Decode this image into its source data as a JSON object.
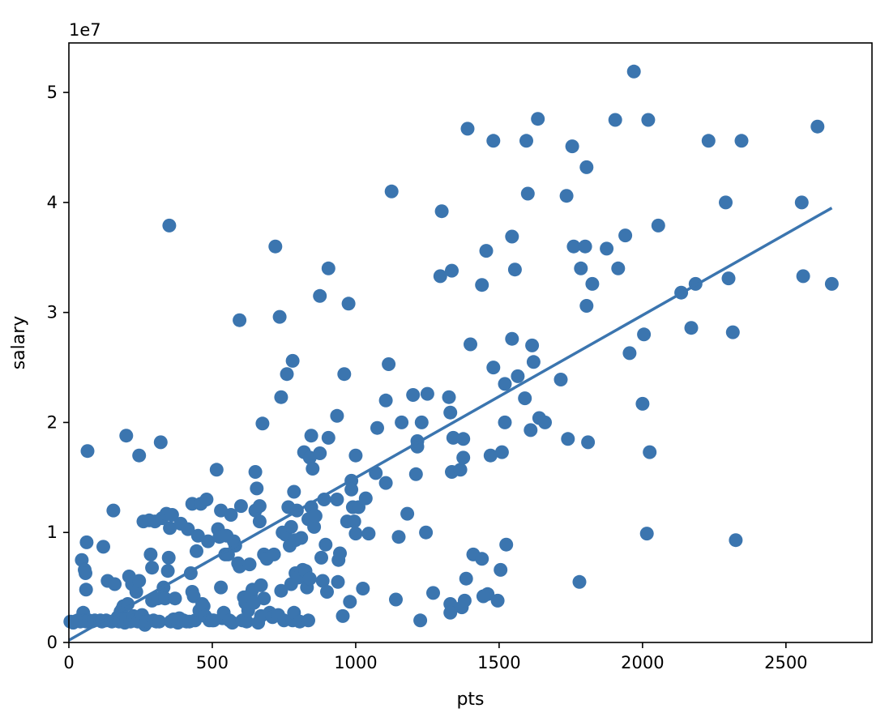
{
  "chart_data": {
    "type": "scatter",
    "title": "",
    "xlabel": "pts",
    "ylabel": "salary",
    "y_offset_label": "1e7",
    "xlim": [
      0,
      2800
    ],
    "ylim": [
      0,
      54500000
    ],
    "x_ticks": [
      0,
      500,
      1000,
      1500,
      2000,
      2500
    ],
    "x_tick_labels": [
      "0",
      "500",
      "1000",
      "1500",
      "2000",
      "2500"
    ],
    "y_ticks": [
      0,
      10000000,
      20000000,
      30000000,
      40000000,
      50000000
    ],
    "y_tick_labels": [
      "0",
      "1",
      "2",
      "3",
      "4",
      "5"
    ],
    "grid": false,
    "legend": "none",
    "colors": {
      "points": "#3b75af",
      "fit_line": "#3b75af"
    },
    "fit_line": {
      "x": [
        0,
        2660
      ],
      "y": [
        200000,
        39500000
      ]
    },
    "points": [
      [
        5,
        1900000
      ],
      [
        15,
        1800000
      ],
      [
        20,
        1900000
      ],
      [
        30,
        2000000
      ],
      [
        40,
        1900000
      ],
      [
        45,
        7500000
      ],
      [
        50,
        2700000
      ],
      [
        55,
        2000000
      ],
      [
        55,
        6600000
      ],
      [
        58,
        6300000
      ],
      [
        60,
        1900000
      ],
      [
        60,
        4800000
      ],
      [
        62,
        9100000
      ],
      [
        65,
        17400000
      ],
      [
        70,
        2000000
      ],
      [
        80,
        1900000
      ],
      [
        90,
        2000000
      ],
      [
        110,
        2000000
      ],
      [
        115,
        1900000
      ],
      [
        120,
        8700000
      ],
      [
        130,
        2000000
      ],
      [
        135,
        5600000
      ],
      [
        150,
        1900000
      ],
      [
        155,
        12000000
      ],
      [
        160,
        5300000
      ],
      [
        165,
        2000000
      ],
      [
        170,
        2300000
      ],
      [
        175,
        1900000
      ],
      [
        180,
        2800000
      ],
      [
        185,
        3000000
      ],
      [
        190,
        3300000
      ],
      [
        195,
        1800000
      ],
      [
        200,
        18800000
      ],
      [
        200,
        2100000
      ],
      [
        205,
        3500000
      ],
      [
        210,
        6000000
      ],
      [
        215,
        1900000
      ],
      [
        220,
        5300000
      ],
      [
        225,
        2400000
      ],
      [
        230,
        2000000
      ],
      [
        235,
        4600000
      ],
      [
        240,
        1900000
      ],
      [
        245,
        17000000
      ],
      [
        245,
        5600000
      ],
      [
        255,
        2500000
      ],
      [
        260,
        11000000
      ],
      [
        265,
        1600000
      ],
      [
        270,
        2000000
      ],
      [
        275,
        1900000
      ],
      [
        280,
        11100000
      ],
      [
        285,
        8000000
      ],
      [
        290,
        6800000
      ],
      [
        290,
        3800000
      ],
      [
        295,
        2000000
      ],
      [
        300,
        11000000
      ],
      [
        305,
        1900000
      ],
      [
        310,
        4000000
      ],
      [
        315,
        1900000
      ],
      [
        320,
        18200000
      ],
      [
        325,
        11300000
      ],
      [
        330,
        5000000
      ],
      [
        335,
        4000000
      ],
      [
        340,
        11700000
      ],
      [
        345,
        6500000
      ],
      [
        348,
        7700000
      ],
      [
        350,
        37900000
      ],
      [
        352,
        10400000
      ],
      [
        355,
        1900000
      ],
      [
        360,
        11600000
      ],
      [
        365,
        2100000
      ],
      [
        370,
        4000000
      ],
      [
        375,
        2000000
      ],
      [
        380,
        1800000
      ],
      [
        385,
        2200000
      ],
      [
        390,
        10800000
      ],
      [
        395,
        2000000
      ],
      [
        400,
        2000000
      ],
      [
        410,
        1900000
      ],
      [
        415,
        10300000
      ],
      [
        420,
        1900000
      ],
      [
        425,
        6300000
      ],
      [
        430,
        12600000
      ],
      [
        430,
        4600000
      ],
      [
        435,
        4200000
      ],
      [
        440,
        2000000
      ],
      [
        445,
        8300000
      ],
      [
        450,
        9700000
      ],
      [
        455,
        2900000
      ],
      [
        460,
        12600000
      ],
      [
        465,
        3500000
      ],
      [
        470,
        3300000
      ],
      [
        475,
        2400000
      ],
      [
        480,
        13000000
      ],
      [
        485,
        9200000
      ],
      [
        490,
        2000000
      ],
      [
        500,
        2000000
      ],
      [
        505,
        2000000
      ],
      [
        515,
        15700000
      ],
      [
        520,
        10300000
      ],
      [
        525,
        9600000
      ],
      [
        530,
        5000000
      ],
      [
        530,
        12000000
      ],
      [
        535,
        2200000
      ],
      [
        540,
        2700000
      ],
      [
        545,
        8000000
      ],
      [
        550,
        9700000
      ],
      [
        555,
        8000000
      ],
      [
        560,
        2000000
      ],
      [
        565,
        11600000
      ],
      [
        570,
        1800000
      ],
      [
        575,
        9200000
      ],
      [
        580,
        8800000
      ],
      [
        590,
        7200000
      ],
      [
        595,
        29300000
      ],
      [
        595,
        6900000
      ],
      [
        600,
        12400000
      ],
      [
        605,
        2000000
      ],
      [
        610,
        4100000
      ],
      [
        615,
        3600000
      ],
      [
        620,
        1900000
      ],
      [
        625,
        2900000
      ],
      [
        630,
        7100000
      ],
      [
        635,
        4400000
      ],
      [
        640,
        4800000
      ],
      [
        645,
        3600000
      ],
      [
        650,
        12000000
      ],
      [
        650,
        15500000
      ],
      [
        655,
        14000000
      ],
      [
        660,
        1800000
      ],
      [
        665,
        12400000
      ],
      [
        665,
        11000000
      ],
      [
        670,
        5200000
      ],
      [
        670,
        2400000
      ],
      [
        675,
        19900000
      ],
      [
        680,
        8000000
      ],
      [
        680,
        4000000
      ],
      [
        690,
        7600000
      ],
      [
        700,
        2700000
      ],
      [
        710,
        2300000
      ],
      [
        715,
        8000000
      ],
      [
        720,
        36000000
      ],
      [
        730,
        2500000
      ],
      [
        735,
        29600000
      ],
      [
        740,
        22300000
      ],
      [
        740,
        4700000
      ],
      [
        745,
        10000000
      ],
      [
        750,
        2000000
      ],
      [
        755,
        9800000
      ],
      [
        760,
        24400000
      ],
      [
        765,
        12300000
      ],
      [
        770,
        8800000
      ],
      [
        775,
        5300000
      ],
      [
        775,
        10500000
      ],
      [
        780,
        2000000
      ],
      [
        780,
        25600000
      ],
      [
        785,
        13700000
      ],
      [
        785,
        2700000
      ],
      [
        790,
        9300000
      ],
      [
        790,
        6300000
      ],
      [
        795,
        12000000
      ],
      [
        800,
        5900000
      ],
      [
        805,
        1900000
      ],
      [
        810,
        9500000
      ],
      [
        815,
        6600000
      ],
      [
        820,
        17300000
      ],
      [
        825,
        6500000
      ],
      [
        830,
        5000000
      ],
      [
        835,
        2000000
      ],
      [
        835,
        11200000
      ],
      [
        840,
        16800000
      ],
      [
        840,
        5800000
      ],
      [
        845,
        18800000
      ],
      [
        845,
        12300000
      ],
      [
        850,
        15800000
      ],
      [
        855,
        10500000
      ],
      [
        860,
        11500000
      ],
      [
        875,
        17200000
      ],
      [
        875,
        31500000
      ],
      [
        880,
        7700000
      ],
      [
        885,
        5600000
      ],
      [
        890,
        13000000
      ],
      [
        895,
        8900000
      ],
      [
        900,
        4600000
      ],
      [
        905,
        34000000
      ],
      [
        905,
        18600000
      ],
      [
        935,
        20600000
      ],
      [
        935,
        13000000
      ],
      [
        938,
        5500000
      ],
      [
        940,
        7500000
      ],
      [
        945,
        8100000
      ],
      [
        955,
        2400000
      ],
      [
        960,
        24400000
      ],
      [
        970,
        11000000
      ],
      [
        975,
        30800000
      ],
      [
        980,
        3700000
      ],
      [
        985,
        14700000
      ],
      [
        985,
        13900000
      ],
      [
        990,
        12300000
      ],
      [
        995,
        11000000
      ],
      [
        1000,
        17000000
      ],
      [
        1000,
        9900000
      ],
      [
        1010,
        12300000
      ],
      [
        1025,
        4900000
      ],
      [
        1035,
        13100000
      ],
      [
        1045,
        9900000
      ],
      [
        1070,
        15400000
      ],
      [
        1075,
        19500000
      ],
      [
        1105,
        22000000
      ],
      [
        1105,
        14500000
      ],
      [
        1115,
        25300000
      ],
      [
        1125,
        41000000
      ],
      [
        1140,
        3900000
      ],
      [
        1150,
        9600000
      ],
      [
        1160,
        20000000
      ],
      [
        1180,
        11700000
      ],
      [
        1200,
        22500000
      ],
      [
        1210,
        15300000
      ],
      [
        1215,
        18300000
      ],
      [
        1215,
        17800000
      ],
      [
        1225,
        2000000
      ],
      [
        1230,
        20000000
      ],
      [
        1245,
        10000000
      ],
      [
        1250,
        22600000
      ],
      [
        1270,
        4500000
      ],
      [
        1295,
        33300000
      ],
      [
        1300,
        39200000
      ],
      [
        1325,
        22300000
      ],
      [
        1330,
        3500000
      ],
      [
        1330,
        20900000
      ],
      [
        1330,
        2700000
      ],
      [
        1335,
        33800000
      ],
      [
        1335,
        15500000
      ],
      [
        1340,
        18600000
      ],
      [
        1365,
        15700000
      ],
      [
        1370,
        3200000
      ],
      [
        1375,
        16800000
      ],
      [
        1375,
        18500000
      ],
      [
        1380,
        3800000
      ],
      [
        1385,
        5800000
      ],
      [
        1390,
        46700000
      ],
      [
        1400,
        27100000
      ],
      [
        1410,
        8000000
      ],
      [
        1440,
        32500000
      ],
      [
        1440,
        7600000
      ],
      [
        1445,
        4200000
      ],
      [
        1455,
        35600000
      ],
      [
        1460,
        4400000
      ],
      [
        1470,
        17000000
      ],
      [
        1480,
        45600000
      ],
      [
        1480,
        25000000
      ],
      [
        1495,
        3800000
      ],
      [
        1505,
        6600000
      ],
      [
        1510,
        17300000
      ],
      [
        1520,
        23500000
      ],
      [
        1520,
        20000000
      ],
      [
        1525,
        8900000
      ],
      [
        1545,
        36900000
      ],
      [
        1545,
        27600000
      ],
      [
        1555,
        33900000
      ],
      [
        1565,
        24200000
      ],
      [
        1590,
        22200000
      ],
      [
        1595,
        45600000
      ],
      [
        1600,
        40800000
      ],
      [
        1610,
        19300000
      ],
      [
        1615,
        27000000
      ],
      [
        1620,
        25500000
      ],
      [
        1635,
        47600000
      ],
      [
        1640,
        20400000
      ],
      [
        1660,
        20000000
      ],
      [
        1715,
        23900000
      ],
      [
        1735,
        40600000
      ],
      [
        1740,
        18500000
      ],
      [
        1755,
        45100000
      ],
      [
        1760,
        36000000
      ],
      [
        1780,
        5500000
      ],
      [
        1785,
        34000000
      ],
      [
        1800,
        36000000
      ],
      [
        1805,
        43200000
      ],
      [
        1805,
        30600000
      ],
      [
        1810,
        18200000
      ],
      [
        1825,
        32600000
      ],
      [
        1875,
        35800000
      ],
      [
        1905,
        47500000
      ],
      [
        1915,
        34000000
      ],
      [
        1940,
        37000000
      ],
      [
        1955,
        26300000
      ],
      [
        1970,
        51900000
      ],
      [
        2000,
        21700000
      ],
      [
        2005,
        28000000
      ],
      [
        2015,
        9900000
      ],
      [
        2020,
        47500000
      ],
      [
        2025,
        17300000
      ],
      [
        2055,
        37900000
      ],
      [
        2135,
        31800000
      ],
      [
        2170,
        28600000
      ],
      [
        2185,
        32600000
      ],
      [
        2230,
        45600000
      ],
      [
        2290,
        40000000
      ],
      [
        2300,
        33100000
      ],
      [
        2315,
        28200000
      ],
      [
        2325,
        9300000
      ],
      [
        2345,
        45600000
      ],
      [
        2555,
        40000000
      ],
      [
        2560,
        33300000
      ],
      [
        2610,
        46900000
      ],
      [
        2660,
        32600000
      ]
    ]
  }
}
